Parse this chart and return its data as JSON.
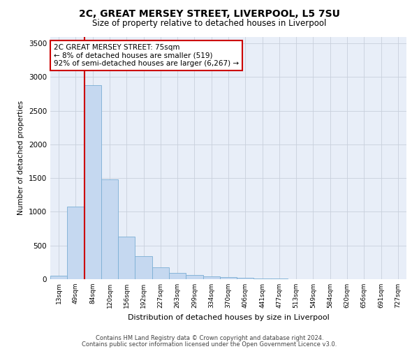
{
  "title_line1": "2C, GREAT MERSEY STREET, LIVERPOOL, L5 7SU",
  "title_line2": "Size of property relative to detached houses in Liverpool",
  "xlabel": "Distribution of detached houses by size in Liverpool",
  "ylabel": "Number of detached properties",
  "categories": [
    "13sqm",
    "49sqm",
    "84sqm",
    "120sqm",
    "156sqm",
    "192sqm",
    "227sqm",
    "263sqm",
    "299sqm",
    "334sqm",
    "370sqm",
    "406sqm",
    "441sqm",
    "477sqm",
    "513sqm",
    "549sqm",
    "584sqm",
    "620sqm",
    "656sqm",
    "691sqm",
    "727sqm"
  ],
  "values": [
    50,
    1080,
    2880,
    1480,
    630,
    340,
    175,
    95,
    65,
    45,
    30,
    20,
    12,
    8,
    5,
    3,
    2,
    1,
    1,
    1,
    0
  ],
  "bar_color": "#c5d8f0",
  "bar_edge_color": "#7baed4",
  "vline_x_index": 2,
  "vline_color": "#cc0000",
  "annotation_text": "2C GREAT MERSEY STREET: 75sqm\n← 8% of detached houses are smaller (519)\n92% of semi-detached houses are larger (6,267) →",
  "annotation_box_color": "#ffffff",
  "annotation_box_edge": "#cc0000",
  "ylim": [
    0,
    3600
  ],
  "yticks": [
    0,
    500,
    1000,
    1500,
    2000,
    2500,
    3000,
    3500
  ],
  "plot_bg_color": "#e8eef8",
  "footer_line1": "Contains HM Land Registry data © Crown copyright and database right 2024.",
  "footer_line2": "Contains public sector information licensed under the Open Government Licence v3.0."
}
